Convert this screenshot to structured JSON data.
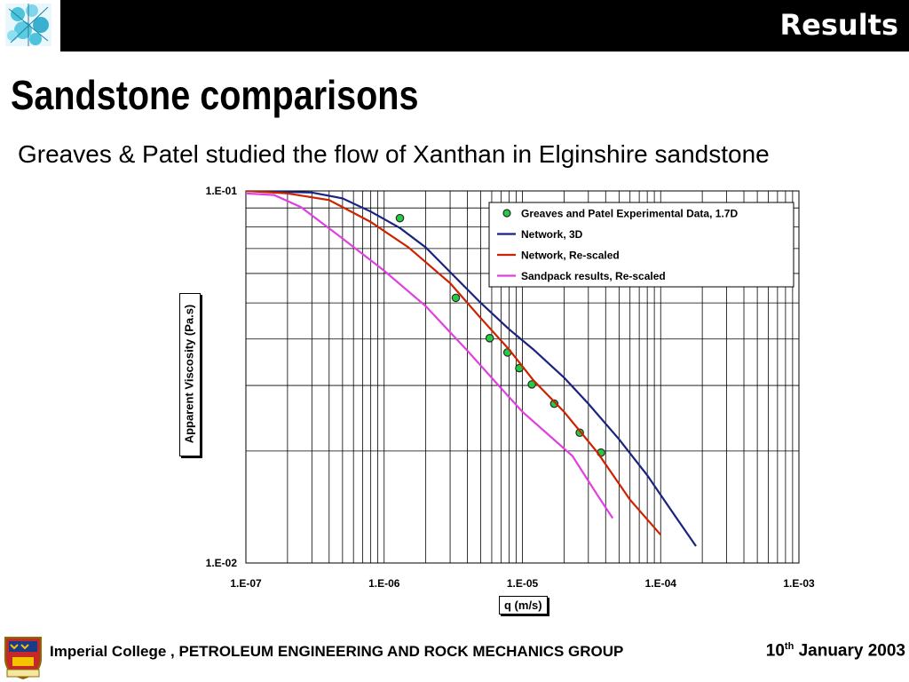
{
  "header": {
    "title": "Results"
  },
  "slide": {
    "title": "Sandstone comparisons",
    "subtitle": "Greaves & Patel studied the flow of Xanthan in Elginshire sandstone"
  },
  "footer": {
    "org": "Imperial College , PETROLEUM ENGINEERING AND ROCK MECHANICS GROUP",
    "date_day": "10",
    "date_suffix": "th",
    "date_rest": " January 2003"
  },
  "colors": {
    "network3d": "#1a237e",
    "network_rescaled": "#cc2200",
    "sandpack": "#e040e0",
    "experimental": "#22cc44"
  },
  "chart_data": {
    "type": "line",
    "xscale": "log",
    "yscale": "log",
    "xlabel": "q (m/s)",
    "ylabel": "Apparent Viscosity (Pa.s)",
    "xlim": [
      1e-07,
      0.001
    ],
    "ylim": [
      0.01,
      0.1
    ],
    "x_tick_labels": [
      "1.E-07",
      "1.E-06",
      "1.E-05",
      "1.E-04",
      "1.E-03"
    ],
    "y_tick_labels": [
      "1.E-01",
      "1.E-02"
    ],
    "grid": true,
    "legend_position": "top-right",
    "series": [
      {
        "name": "Greaves and Patel Experimental Data, 1.7D",
        "style": "markers",
        "x": [
          1.3e-06,
          3.3e-06,
          5.8e-06,
          7.8e-06,
          9.5e-06,
          1.17e-05,
          1.7e-05,
          2.6e-05,
          3.7e-05
        ],
        "y": [
          0.0845,
          0.0516,
          0.0402,
          0.0368,
          0.0334,
          0.0302,
          0.0268,
          0.0224,
          0.0198
        ]
      },
      {
        "name": "Network, 3D",
        "style": "line",
        "x": [
          1e-07,
          3e-07,
          5e-07,
          8e-07,
          1.3e-06,
          2e-06,
          3e-06,
          5e-06,
          8e-06,
          1.2e-05,
          2e-05,
          3e-05,
          5e-05,
          8e-05,
          0.00012,
          0.00018
        ],
        "y": [
          0.1,
          0.099,
          0.0955,
          0.088,
          0.0795,
          0.0705,
          0.0605,
          0.05,
          0.0425,
          0.0375,
          0.0315,
          0.0268,
          0.0215,
          0.0172,
          0.0138,
          0.0111
        ]
      },
      {
        "name": "Network, Re-scaled",
        "style": "line",
        "x": [
          1e-07,
          2e-07,
          4e-07,
          8e-07,
          1.5e-06,
          3e-06,
          5e-06,
          8e-06,
          1.2e-05,
          2e-05,
          3.5e-05,
          6e-05,
          0.0001
        ],
        "y": [
          0.1,
          0.0985,
          0.0945,
          0.0825,
          0.0705,
          0.0565,
          0.0455,
          0.0375,
          0.031,
          0.0255,
          0.0198,
          0.0148,
          0.0119
        ]
      },
      {
        "name": "Sandpack results, Re-scaled",
        "style": "line",
        "x": [
          1e-07,
          1.6e-07,
          2.5e-07,
          5e-07,
          1e-06,
          2e-06,
          4e-06,
          7e-06,
          1e-05,
          2.3e-05,
          3.5e-05,
          4.5e-05
        ],
        "y": [
          0.0985,
          0.0975,
          0.0905,
          0.0745,
          0.061,
          0.049,
          0.0372,
          0.0295,
          0.0255,
          0.0194,
          0.0152,
          0.0132
        ]
      }
    ]
  }
}
